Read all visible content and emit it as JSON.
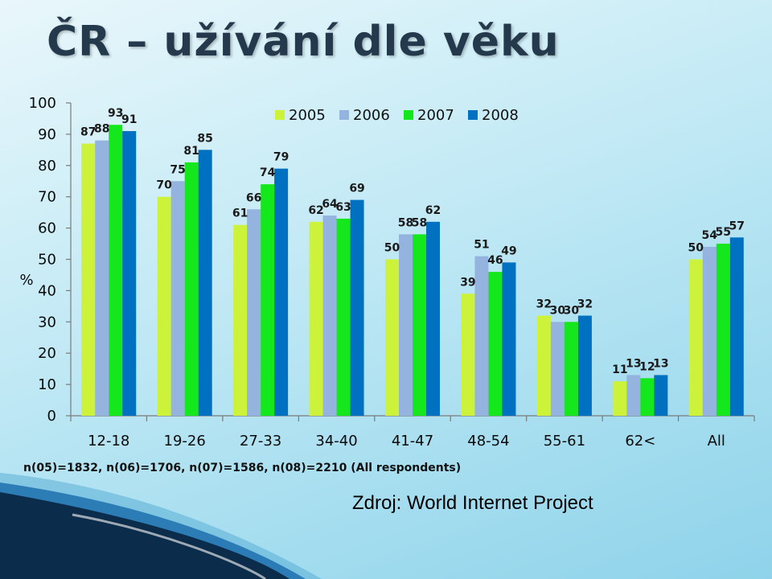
{
  "title": "ČR – užívání dle věku",
  "note": "n(05)=1832, n(06)=1706, n(07)=1586, n(08)=2210 (All respondents)",
  "source": "Zdroj: World Internet Project",
  "colors": {
    "2005": "#ccf23a",
    "2006": "#94b3df",
    "2007": "#14e81c",
    "2008": "#0070c0",
    "axis": "#7a7a7a"
  },
  "chart_data": {
    "type": "bar",
    "title": "ČR – užívání dle věku",
    "ylabel": "%",
    "xlabel": "",
    "ylim": [
      0,
      100
    ],
    "yticks": [
      0,
      10,
      20,
      30,
      40,
      50,
      60,
      70,
      80,
      90,
      100
    ],
    "legend": "top-right",
    "grid": false,
    "categories": [
      "12-18",
      "19-26",
      "27-33",
      "34-40",
      "41-47",
      "48-54",
      "55-61",
      "62<",
      "All"
    ],
    "series": [
      {
        "name": "2005",
        "values": [
          87,
          70,
          61,
          62,
          50,
          39,
          32,
          11,
          50
        ]
      },
      {
        "name": "2006",
        "values": [
          88,
          75,
          66,
          64,
          58,
          51,
          30,
          13,
          54
        ]
      },
      {
        "name": "2007",
        "values": [
          93,
          81,
          74,
          63,
          58,
          46,
          30,
          12,
          55
        ]
      },
      {
        "name": "2008",
        "values": [
          91,
          85,
          79,
          69,
          62,
          49,
          32,
          13,
          57
        ]
      }
    ]
  }
}
